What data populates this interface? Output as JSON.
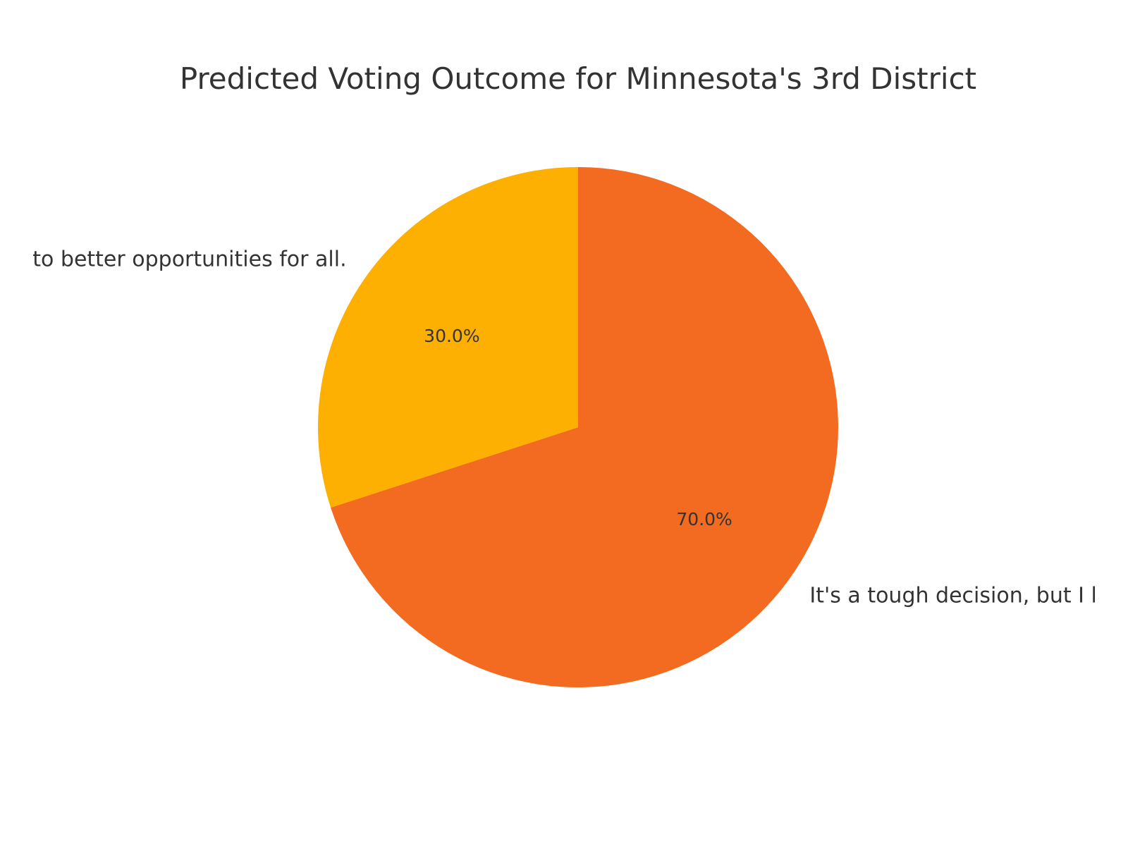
{
  "chart_data": {
    "type": "pie",
    "title": "Predicted Voting Outcome for Minnesota's 3rd District",
    "slices": [
      {
        "label": "It's a tough decision, but I l",
        "value": 70.0,
        "pct_label": "70.0%",
        "color": "#f26b21"
      },
      {
        "label": "to better opportunities for all.",
        "value": 30.0,
        "pct_label": "30.0%",
        "color": "#fdb002"
      }
    ],
    "start_angle_deg": 90,
    "direction": "clockwise"
  }
}
